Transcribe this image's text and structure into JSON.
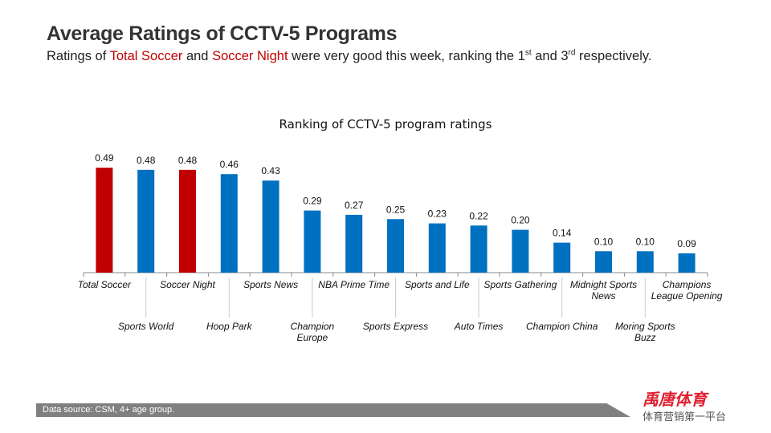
{
  "title": "Average Ratings of CCTV-5 Programs",
  "subtitle": {
    "p1": "Ratings of ",
    "h1": "Total Soccer",
    "p2": " and ",
    "h2": "Soccer Night",
    "p3": " were very good this week, ranking the 1",
    "s1": "st",
    "p4": " and 3",
    "s2": "rd",
    "p5": " respectively."
  },
  "watermark": "禹唐体育",
  "footer": {
    "source": "Data source: CSM, 4+ age group.",
    "logo": "禹唐体育",
    "slogan": "体育营销第一平台"
  },
  "colors": {
    "highlight": "#c00000",
    "bar": "#0070c0"
  },
  "chart_data": {
    "type": "bar",
    "title": "Ranking of CCTV-5 program ratings",
    "categories": [
      "Total Soccer",
      "Sports World",
      "Soccer Night",
      "Hoop Park",
      "Sports News",
      "Champion Europe",
      "NBA Prime Time",
      "Sports Express",
      "Sports and Life",
      "Auto Times",
      "Sports Gathering",
      "Champion China",
      "Midnight Sports News",
      "Moring Sports Buzz",
      "Champions League Opening"
    ],
    "values": [
      0.49,
      0.48,
      0.48,
      0.46,
      0.43,
      0.29,
      0.27,
      0.25,
      0.23,
      0.22,
      0.2,
      0.14,
      0.1,
      0.1,
      0.09
    ],
    "highlighted": [
      "Total Soccer",
      "Soccer Night"
    ],
    "ylim": [
      0,
      0.5
    ],
    "grid": false,
    "legend": "none",
    "xlabel": "",
    "ylabel": ""
  }
}
